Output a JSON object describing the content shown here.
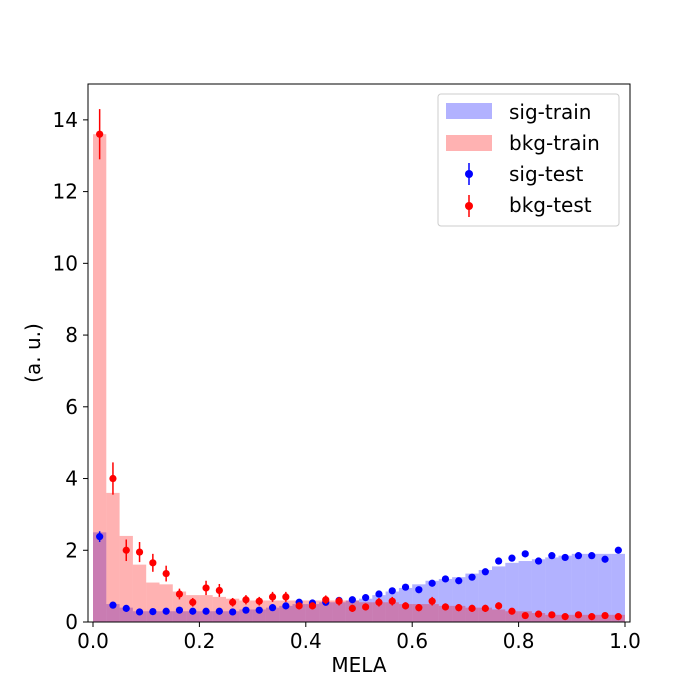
{
  "chart_data": {
    "type": "histogram",
    "title": "",
    "xlabel": "MELA",
    "ylabel": "(a. u.)",
    "xlim": [
      0.0,
      1.0
    ],
    "ylim": [
      0,
      15
    ],
    "xticks": [
      0.0,
      0.2,
      0.4,
      0.6,
      0.8,
      1.0
    ],
    "xtick_labels": [
      "0.0",
      "0.2",
      "0.4",
      "0.6",
      "0.8",
      "1.0"
    ],
    "yticks": [
      0,
      2,
      4,
      6,
      8,
      10,
      12,
      14
    ],
    "ytick_labels": [
      "0",
      "2",
      "4",
      "6",
      "8",
      "10",
      "12",
      "14"
    ],
    "grid": false,
    "legend_position": "top-right",
    "bin_edges": [
      0.0,
      0.025,
      0.05,
      0.075,
      0.1,
      0.125,
      0.15,
      0.175,
      0.2,
      0.225,
      0.25,
      0.275,
      0.3,
      0.325,
      0.35,
      0.375,
      0.4,
      0.425,
      0.45,
      0.475,
      0.5,
      0.525,
      0.55,
      0.575,
      0.6,
      0.625,
      0.65,
      0.675,
      0.7,
      0.725,
      0.75,
      0.775,
      0.8,
      0.825,
      0.85,
      0.875,
      0.9,
      0.925,
      0.95,
      0.975,
      1.0
    ],
    "series": [
      {
        "name": "sig-train",
        "kind": "filled-hist",
        "color": "#0000ff",
        "opacity": 0.3,
        "values": [
          2.5,
          0.5,
          0.4,
          0.3,
          0.3,
          0.3,
          0.3,
          0.3,
          0.3,
          0.3,
          0.3,
          0.35,
          0.35,
          0.4,
          0.45,
          0.5,
          0.5,
          0.55,
          0.55,
          0.6,
          0.65,
          0.75,
          0.85,
          0.95,
          1.05,
          1.15,
          1.2,
          1.25,
          1.35,
          1.45,
          1.55,
          1.65,
          1.7,
          1.75,
          1.8,
          1.85,
          1.9,
          1.9,
          1.9,
          1.9
        ]
      },
      {
        "name": "bkg-train",
        "kind": "filled-hist",
        "color": "#ff0000",
        "opacity": 0.3,
        "values": [
          13.6,
          3.6,
          2.4,
          1.6,
          1.1,
          1.05,
          0.85,
          0.75,
          0.75,
          0.7,
          0.65,
          0.6,
          0.6,
          0.6,
          0.6,
          0.6,
          0.6,
          0.6,
          0.6,
          0.6,
          0.55,
          0.55,
          0.55,
          0.5,
          0.5,
          0.5,
          0.45,
          0.45,
          0.4,
          0.4,
          0.35,
          0.3,
          0.3,
          0.25,
          0.2,
          0.2,
          0.2,
          0.2,
          0.2,
          0.2
        ]
      },
      {
        "name": "sig-test",
        "kind": "errorbar",
        "color": "#0000ff",
        "x": [
          0.0125,
          0.0375,
          0.0625,
          0.0875,
          0.1125,
          0.1375,
          0.1625,
          0.1875,
          0.2125,
          0.2375,
          0.2625,
          0.2875,
          0.3125,
          0.3375,
          0.3625,
          0.3875,
          0.4125,
          0.4375,
          0.4625,
          0.4875,
          0.5125,
          0.5375,
          0.5625,
          0.5875,
          0.6125,
          0.6375,
          0.6625,
          0.6875,
          0.7125,
          0.7375,
          0.7625,
          0.7875,
          0.8125,
          0.8375,
          0.8625,
          0.8875,
          0.9125,
          0.9375,
          0.9625,
          0.9875
        ],
        "y": [
          2.38,
          0.47,
          0.38,
          0.28,
          0.29,
          0.3,
          0.33,
          0.3,
          0.3,
          0.3,
          0.28,
          0.33,
          0.33,
          0.4,
          0.45,
          0.55,
          0.53,
          0.55,
          0.6,
          0.62,
          0.68,
          0.78,
          0.87,
          0.97,
          0.9,
          1.08,
          1.2,
          1.15,
          1.25,
          1.4,
          1.7,
          1.78,
          1.9,
          1.7,
          1.85,
          1.8,
          1.85,
          1.85,
          1.75,
          2.0
        ],
        "yerr": [
          0.15,
          0.05,
          0.05,
          0.04,
          0.04,
          0.04,
          0.04,
          0.04,
          0.04,
          0.04,
          0.04,
          0.04,
          0.04,
          0.05,
          0.05,
          0.05,
          0.05,
          0.05,
          0.05,
          0.05,
          0.05,
          0.06,
          0.06,
          0.06,
          0.06,
          0.06,
          0.06,
          0.06,
          0.06,
          0.07,
          0.07,
          0.07,
          0.07,
          0.07,
          0.07,
          0.07,
          0.07,
          0.07,
          0.07,
          0.07
        ]
      },
      {
        "name": "bkg-test",
        "kind": "errorbar",
        "color": "#ff0000",
        "x": [
          0.0125,
          0.0375,
          0.0625,
          0.0875,
          0.1125,
          0.1375,
          0.1625,
          0.1875,
          0.2125,
          0.2375,
          0.2625,
          0.2875,
          0.3125,
          0.3375,
          0.3625,
          0.3875,
          0.4125,
          0.4375,
          0.4625,
          0.4875,
          0.5125,
          0.5375,
          0.5625,
          0.5875,
          0.6125,
          0.6375,
          0.6625,
          0.6875,
          0.7125,
          0.7375,
          0.7625,
          0.7875,
          0.8125,
          0.8375,
          0.8625,
          0.8875,
          0.9125,
          0.9375,
          0.9625,
          0.9875
        ],
        "y": [
          13.6,
          4.0,
          2.0,
          1.95,
          1.65,
          1.35,
          0.78,
          0.55,
          0.95,
          0.88,
          0.55,
          0.62,
          0.58,
          0.7,
          0.7,
          0.45,
          0.45,
          0.62,
          0.58,
          0.38,
          0.42,
          0.55,
          0.58,
          0.45,
          0.4,
          0.58,
          0.42,
          0.4,
          0.38,
          0.38,
          0.45,
          0.3,
          0.18,
          0.22,
          0.2,
          0.15,
          0.2,
          0.15,
          0.18,
          0.15
        ],
        "yerr": [
          0.7,
          0.45,
          0.3,
          0.28,
          0.25,
          0.22,
          0.15,
          0.12,
          0.2,
          0.18,
          0.12,
          0.13,
          0.12,
          0.14,
          0.14,
          0.1,
          0.1,
          0.12,
          0.12,
          0.1,
          0.1,
          0.12,
          0.12,
          0.1,
          0.1,
          0.12,
          0.1,
          0.1,
          0.1,
          0.1,
          0.1,
          0.08,
          0.07,
          0.07,
          0.07,
          0.06,
          0.07,
          0.06,
          0.06,
          0.06
        ]
      }
    ]
  }
}
